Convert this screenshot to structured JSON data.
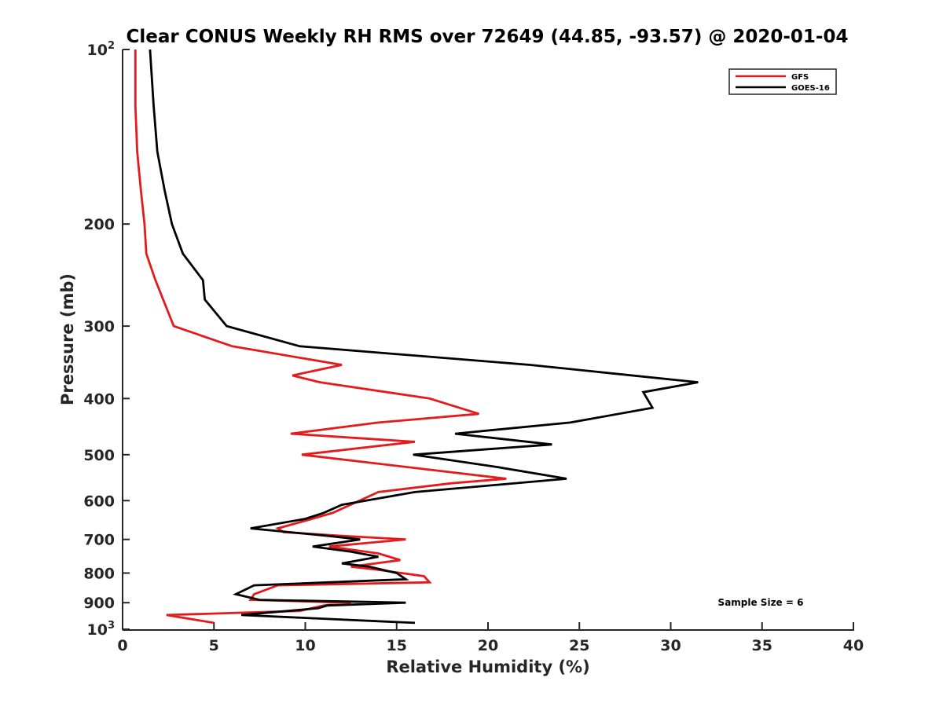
{
  "chart_data": {
    "type": "line",
    "title": "Clear CONUS Weekly RH RMS over 72649 (44.85, -93.57) @ 2020-01-04",
    "xlabel": "Relative Humidity (%)",
    "ylabel": "Pressure (mb)",
    "xlim": [
      0,
      40
    ],
    "ylim": [
      100,
      1000
    ],
    "y_scale": "log",
    "y_reversed": true,
    "x_ticks": [
      "0",
      "5",
      "10",
      "15",
      "20",
      "25",
      "30",
      "35",
      "40"
    ],
    "y_ticks": [
      {
        "value": 100,
        "base": "10",
        "exp": "2"
      },
      {
        "value": 200,
        "base": "200",
        "exp": ""
      },
      {
        "value": 300,
        "base": "300",
        "exp": ""
      },
      {
        "value": 400,
        "base": "400",
        "exp": ""
      },
      {
        "value": 500,
        "base": "500",
        "exp": ""
      },
      {
        "value": 600,
        "base": "600",
        "exp": ""
      },
      {
        "value": 700,
        "base": "700",
        "exp": ""
      },
      {
        "value": 800,
        "base": "800",
        "exp": ""
      },
      {
        "value": 900,
        "base": "900",
        "exp": ""
      },
      {
        "value": 1000,
        "base": "10",
        "exp": "3"
      }
    ],
    "grid": false,
    "legend_position": "top-right",
    "annotation": "Sample Size = 6",
    "series": [
      {
        "name": "GFS",
        "color": "#e41a1c",
        "points": [
          [
            0.7,
            100
          ],
          [
            0.7,
            125
          ],
          [
            0.8,
            150
          ],
          [
            1.0,
            175
          ],
          [
            1.2,
            200
          ],
          [
            1.3,
            225
          ],
          [
            1.8,
            250
          ],
          [
            2.8,
            300
          ],
          [
            6.0,
            325
          ],
          [
            12.0,
            350
          ],
          [
            9.3,
            365
          ],
          [
            10.8,
            375
          ],
          [
            16.8,
            400
          ],
          [
            19.5,
            425
          ],
          [
            14.0,
            440
          ],
          [
            9.2,
            460
          ],
          [
            16.0,
            475
          ],
          [
            9.8,
            500
          ],
          [
            21.0,
            550
          ],
          [
            18.0,
            560
          ],
          [
            14.0,
            580
          ],
          [
            11.5,
            630
          ],
          [
            10.0,
            650
          ],
          [
            8.5,
            670
          ],
          [
            8.8,
            680
          ],
          [
            12.0,
            690
          ],
          [
            15.5,
            700
          ],
          [
            11.3,
            720
          ],
          [
            14.0,
            740
          ],
          [
            15.2,
            760
          ],
          [
            12.5,
            780
          ],
          [
            14.0,
            790
          ],
          [
            16.5,
            810
          ],
          [
            16.8,
            830
          ],
          [
            8.5,
            840
          ],
          [
            7.2,
            870
          ],
          [
            7.0,
            890
          ],
          [
            12.5,
            900
          ],
          [
            11.0,
            910
          ],
          [
            9.7,
            930
          ],
          [
            2.4,
            945
          ],
          [
            5.0,
            975
          ]
        ]
      },
      {
        "name": "GOES-16",
        "color": "#000000",
        "points": [
          [
            1.5,
            100
          ],
          [
            1.7,
            125
          ],
          [
            1.9,
            150
          ],
          [
            2.3,
            175
          ],
          [
            2.7,
            200
          ],
          [
            3.3,
            225
          ],
          [
            4.4,
            250
          ],
          [
            4.5,
            270
          ],
          [
            5.7,
            300
          ],
          [
            9.7,
            325
          ],
          [
            22.3,
            350
          ],
          [
            31.5,
            375
          ],
          [
            28.5,
            390
          ],
          [
            29.0,
            415
          ],
          [
            24.5,
            440
          ],
          [
            18.2,
            460
          ],
          [
            23.5,
            480
          ],
          [
            15.9,
            500
          ],
          [
            20.5,
            525
          ],
          [
            24.3,
            550
          ],
          [
            16.0,
            580
          ],
          [
            12.0,
            610
          ],
          [
            11.0,
            630
          ],
          [
            10.0,
            645
          ],
          [
            7.0,
            670
          ],
          [
            11.2,
            690
          ],
          [
            13.0,
            700
          ],
          [
            10.4,
            720
          ],
          [
            12.5,
            735
          ],
          [
            14.0,
            750
          ],
          [
            12.0,
            770
          ],
          [
            13.5,
            780
          ],
          [
            15.0,
            800
          ],
          [
            15.5,
            820
          ],
          [
            7.2,
            840
          ],
          [
            6.2,
            870
          ],
          [
            7.5,
            890
          ],
          [
            15.5,
            900
          ],
          [
            11.2,
            910
          ],
          [
            10.7,
            920
          ],
          [
            6.5,
            945
          ],
          [
            16.0,
            975
          ]
        ]
      }
    ]
  }
}
